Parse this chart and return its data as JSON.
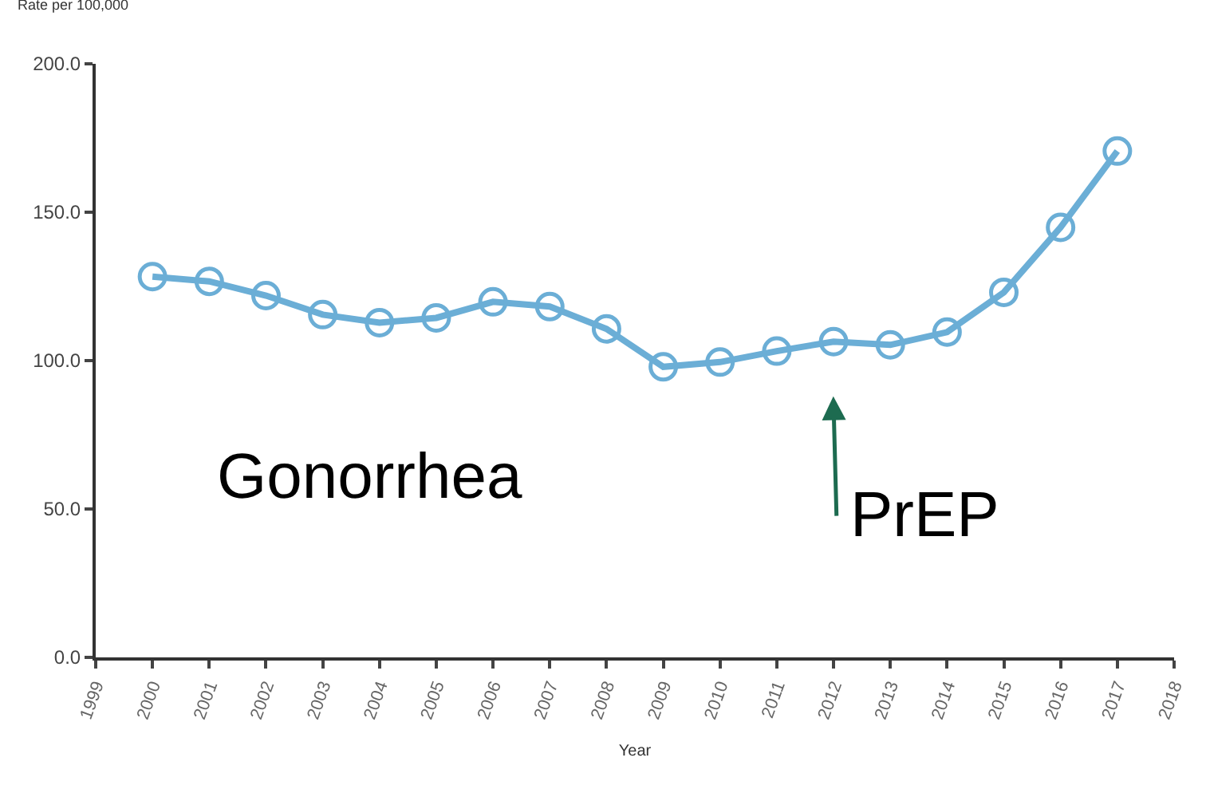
{
  "chart_data": {
    "type": "line",
    "ylabel": "Rate per 100,000",
    "xlabel": "Year",
    "x": [
      2000,
      2001,
      2002,
      2003,
      2004,
      2005,
      2006,
      2007,
      2008,
      2009,
      2010,
      2011,
      2012,
      2013,
      2014,
      2015,
      2016,
      2017
    ],
    "series": [
      {
        "color": "#6baed6",
        "values": [
          128.3,
          126.7,
          121.9,
          115.5,
          112.8,
          114.4,
          119.8,
          118.2,
          110.7,
          97.9,
          99.5,
          103.2,
          106.4,
          105.3,
          109.6,
          123.0,
          144.9,
          170.6
        ]
      }
    ],
    "xlim": [
      1999,
      2018
    ],
    "xticks": [
      1999,
      2000,
      2001,
      2002,
      2003,
      2004,
      2005,
      2006,
      2007,
      2008,
      2009,
      2010,
      2011,
      2012,
      2013,
      2014,
      2015,
      2016,
      2017,
      2018
    ],
    "ylim": [
      0,
      200
    ],
    "yticks": [
      {
        "value": 0,
        "label": "0.0"
      },
      {
        "value": 50,
        "label": "50.0"
      },
      {
        "value": 100,
        "label": "100.0"
      },
      {
        "value": 150,
        "label": "150.0"
      },
      {
        "value": 200,
        "label": "200.0"
      }
    ],
    "annotations": [
      "Gonorrhea",
      "PrEP"
    ],
    "marker": "circle",
    "line_style": "solid",
    "grid": false,
    "legend": false
  }
}
